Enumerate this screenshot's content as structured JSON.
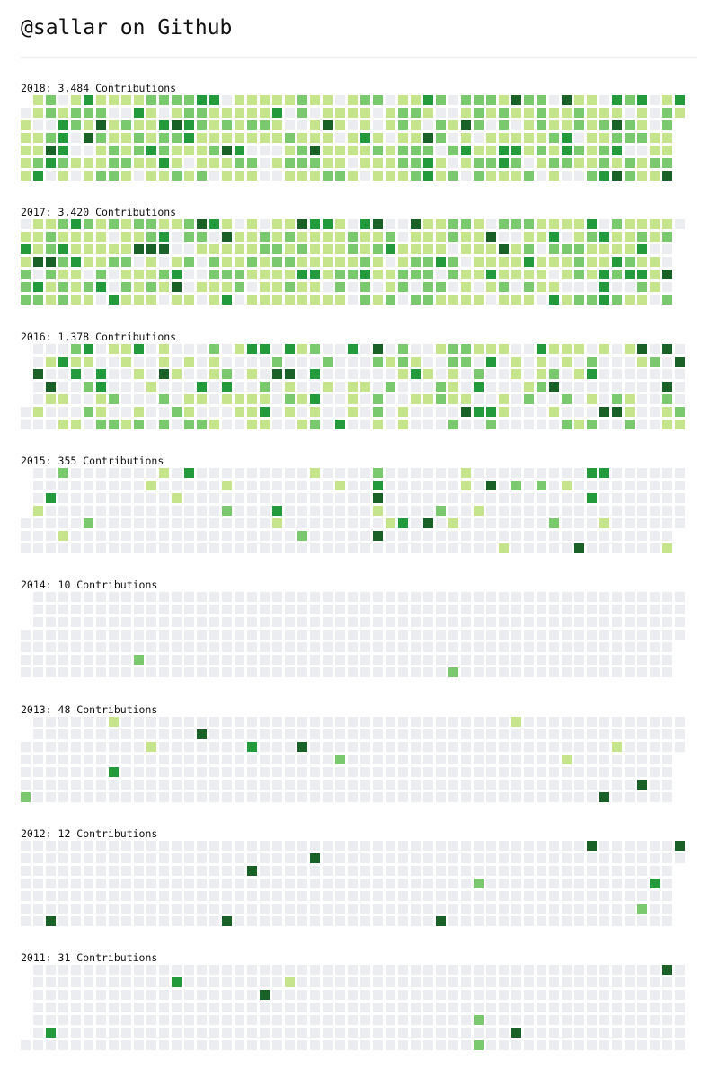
{
  "page": {
    "title": "@sallar on Github"
  },
  "palette": [
    "#ebedf0",
    "#c6e48b",
    "#7bc96f",
    "#239a3b",
    "#196127"
  ],
  "years": [
    {
      "label": "2018: 3,484 Contributions",
      "days": 365,
      "first_weekday": 1,
      "seed": 2018,
      "probs": [
        0.17,
        0.42,
        0.28,
        0.09,
        0.04
      ]
    },
    {
      "label": "2017: 3,420 Contributions",
      "days": 365,
      "first_weekday": 0,
      "seed": 2017,
      "probs": [
        0.13,
        0.47,
        0.27,
        0.09,
        0.04
      ]
    },
    {
      "label": "2016: 1,378 Contributions",
      "days": 366,
      "first_weekday": 5,
      "seed": 2016,
      "probs": [
        0.5,
        0.28,
        0.12,
        0.06,
        0.04
      ]
    },
    {
      "label": "2015: 355 Contributions",
      "days": 365,
      "first_weekday": 4,
      "seed": 2015,
      "probs": [
        0.88,
        0.06,
        0.03,
        0.02,
        0.01
      ]
    },
    {
      "label": "2014: 10 Contributions",
      "days": 365,
      "first_weekday": 3,
      "seed": 2014,
      "probs": [
        0.982,
        0.0,
        0.012,
        0.0,
        0.006
      ]
    },
    {
      "label": "2013: 48 Contributions",
      "days": 365,
      "first_weekday": 2,
      "seed": 2013,
      "probs": [
        0.955,
        0.025,
        0.006,
        0.007,
        0.007
      ]
    },
    {
      "label": "2012: 12 Contributions",
      "days": 366,
      "first_weekday": 0,
      "seed": 2012,
      "probs": [
        0.982,
        0.0,
        0.006,
        0.002,
        0.01
      ]
    },
    {
      "label": "2011: 31 Contributions",
      "days": 365,
      "first_weekday": 6,
      "seed": 2011,
      "probs": [
        0.975,
        0.012,
        0.003,
        0.006,
        0.004
      ]
    }
  ]
}
